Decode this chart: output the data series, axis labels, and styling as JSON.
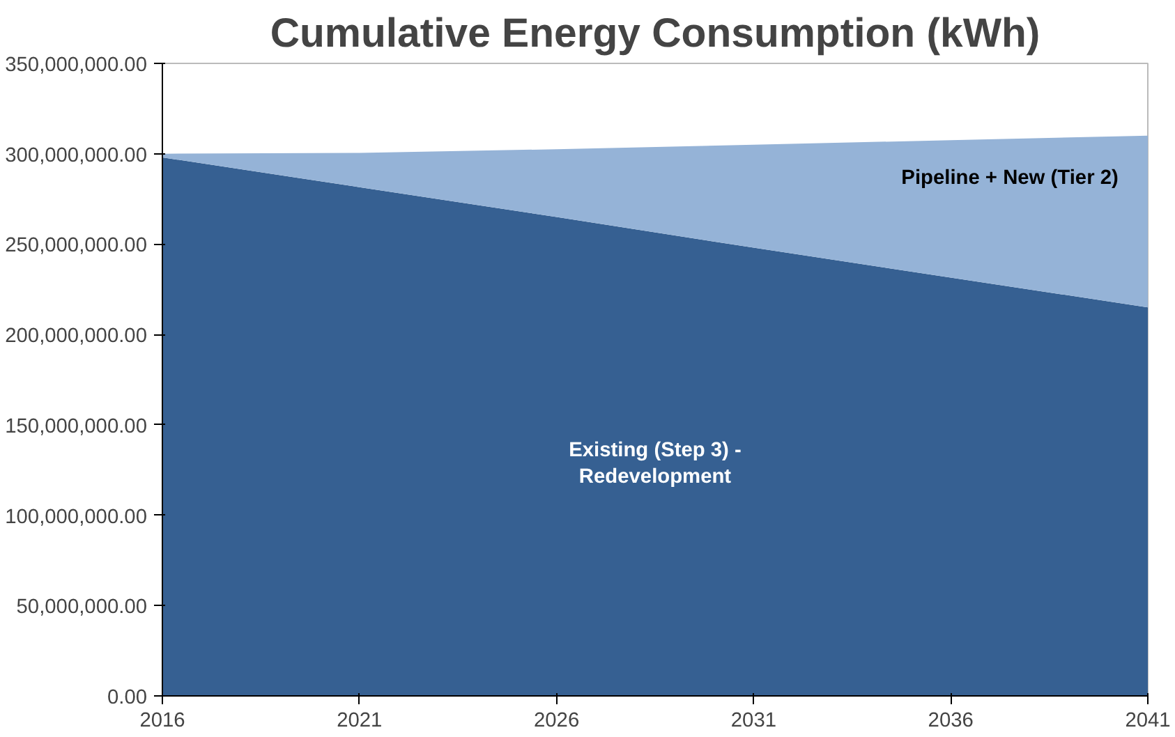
{
  "chart_data": {
    "type": "area",
    "title": "Cumulative Energy Consumption (kWh)",
    "stacked": true,
    "legend": false,
    "grid": false,
    "x": [
      2016,
      2021,
      2026,
      2031,
      2036,
      2041
    ],
    "series": [
      {
        "name": "Existing (Step 3) - Redevelopment",
        "color": "#366092",
        "values": [
          298000000,
          281500000,
          265000000,
          248000000,
          231500000,
          215000000
        ]
      },
      {
        "name": "Pipeline + New (Tier 2)",
        "color": "#95b3d7",
        "values": [
          2000000,
          19000000,
          37500000,
          57000000,
          76000000,
          95000000
        ]
      }
    ],
    "xlim": [
      2016,
      2041
    ],
    "xticks": [
      2016,
      2021,
      2026,
      2031,
      2036,
      2041
    ],
    "ylim": [
      0,
      350000000
    ],
    "yticks": [
      {
        "value": 0,
        "label": "0.00"
      },
      {
        "value": 50000000,
        "label": "50,000,000.00"
      },
      {
        "value": 100000000,
        "label": "100,000,000.00"
      },
      {
        "value": 150000000,
        "label": "150,000,000.00"
      },
      {
        "value": 200000000,
        "label": "200,000,000.00"
      },
      {
        "value": 250000000,
        "label": "250,000,000.00"
      },
      {
        "value": 300000000,
        "label": "300,000,000.00"
      },
      {
        "value": 350000000,
        "label": "350,000,000.00"
      }
    ]
  }
}
